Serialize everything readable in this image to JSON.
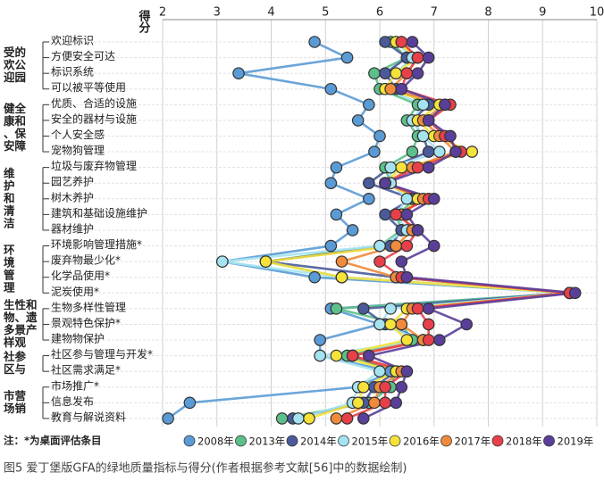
{
  "chart_data": {
    "type": "dot-line",
    "x_label": "得分",
    "xlim": [
      2,
      10
    ],
    "xticks": [
      2,
      3,
      4,
      5,
      6,
      7,
      8,
      9,
      10
    ],
    "grid": true,
    "legend": "bottom",
    "groups": [
      {
        "label": [
          "受的",
          "欢公",
          "迎园"
        ],
        "categories": [
          "欢迎标识",
          "方便安全可达",
          "标识系统",
          "可以被平等使用"
        ]
      },
      {
        "label": [
          "健全",
          "康和",
          "、保",
          "安障"
        ],
        "categories": [
          "优质、合适的设施",
          "安全的器材与设施",
          "个人安全感",
          "宠物狗管理"
        ]
      },
      {
        "label": [
          "维",
          "护",
          "和",
          "清",
          "洁"
        ],
        "categories": [
          "垃圾与废弃物管理",
          "园艺养护",
          "树木养护",
          "建筑和基础设施维护",
          "器材维护"
        ]
      },
      {
        "label": [
          "环",
          "境",
          "管",
          "理"
        ],
        "categories": [
          "环境影响管理措施*",
          "废弃物最少化*",
          "化学品使用*",
          "泥炭使用*"
        ]
      },
      {
        "label": [
          "生性和",
          "物、遗",
          "多景产",
          "样观"
        ],
        "categories": [
          "生物多样性管理",
          "景观特色保护*",
          "建物物保护"
        ]
      },
      {
        "label": [
          "社参",
          "区与"
        ],
        "categories": [
          "社区参与管理与开发*",
          "社区需求满足*"
        ]
      },
      {
        "label": [
          "市营",
          "场销"
        ],
        "categories": [
          "市场推广*",
          "信息发布",
          "教育与解说资料"
        ]
      }
    ],
    "series": [
      {
        "name": "2008年",
        "color": "#5b9bd5",
        "values": [
          4.8,
          5.4,
          3.4,
          5.1,
          5.8,
          5.6,
          6.0,
          5.9,
          5.2,
          5.1,
          5.8,
          5.2,
          5.5,
          5.1,
          3.1,
          4.8,
          9.5,
          5.1,
          6.0,
          4.9,
          4.9,
          6.2,
          5.6,
          2.5,
          2.1
        ]
      },
      {
        "name": "2013年",
        "color": "#5cc08a",
        "values": [
          6.2,
          6.5,
          5.9,
          6.0,
          6.7,
          6.5,
          6.7,
          6.6,
          6.1,
          6.2,
          6.7,
          6.3,
          6.4,
          6.0,
          3.9,
          5.3,
          9.5,
          5.2,
          6.4,
          6.6,
          5.4,
          6.3,
          6.2,
          5.8,
          4.2
        ]
      },
      {
        "name": "2014年",
        "color": "#4a5a9a",
        "values": [
          6.1,
          6.5,
          6.1,
          6.3,
          6.9,
          6.6,
          6.8,
          6.9,
          6.2,
          5.8,
          6.6,
          6.1,
          6.4,
          6.2,
          3.9,
          6.3,
          9.5,
          5.7,
          6.1,
          6.8,
          5.5,
          6.3,
          5.9,
          5.7,
          4.4
        ]
      },
      {
        "name": "2015年",
        "color": "#a5e3f0",
        "values": [
          6.3,
          6.6,
          6.3,
          6.1,
          6.8,
          6.6,
          6.8,
          7.1,
          6.2,
          6.2,
          6.5,
          6.3,
          6.5,
          6.0,
          3.1,
          5.3,
          9.5,
          6.2,
          6.0,
          6.8,
          4.9,
          6.0,
          5.6,
          5.5,
          4.5
        ]
      },
      {
        "name": "2016年",
        "color": "#f5e23a",
        "values": [
          6.3,
          6.7,
          6.3,
          6.1,
          7.1,
          6.7,
          7.0,
          7.7,
          6.4,
          6.1,
          6.7,
          6.4,
          6.6,
          6.3,
          3.9,
          5.3,
          9.5,
          6.5,
          6.2,
          6.5,
          5.2,
          6.3,
          5.7,
          5.6,
          4.7
        ]
      },
      {
        "name": "2017年",
        "color": "#f08a3c",
        "values": [
          6.4,
          6.7,
          6.5,
          6.2,
          7.2,
          6.8,
          7.1,
          7.4,
          6.6,
          6.1,
          6.8,
          6.4,
          6.6,
          6.3,
          5.3,
          6.3,
          9.5,
          6.6,
          6.4,
          6.8,
          5.5,
          6.4,
          6.0,
          5.9,
          5.2
        ]
      },
      {
        "name": "2018年",
        "color": "#e8404a",
        "values": [
          6.4,
          6.7,
          6.5,
          6.4,
          7.3,
          6.9,
          7.2,
          7.5,
          6.7,
          6.1,
          6.9,
          6.3,
          6.7,
          6.5,
          6.0,
          6.4,
          9.5,
          6.7,
          6.9,
          6.9,
          5.5,
          6.5,
          6.1,
          6.1,
          5.4
        ]
      },
      {
        "name": "2019年",
        "color": "#5a3f9a",
        "values": [
          6.6,
          6.9,
          6.7,
          6.4,
          7.2,
          6.9,
          7.3,
          7.4,
          6.9,
          6.1,
          7.0,
          6.5,
          6.7,
          7.0,
          6.4,
          6.5,
          9.6,
          6.9,
          7.6,
          7.1,
          5.8,
          6.5,
          6.4,
          6.3,
          5.7
        ]
      }
    ],
    "note": "注：*为桌面评估条目",
    "caption": "图5  爱丁堡版GFA的绿地质量指标与得分(作者根据参考文献[56]中的数据绘制)"
  }
}
